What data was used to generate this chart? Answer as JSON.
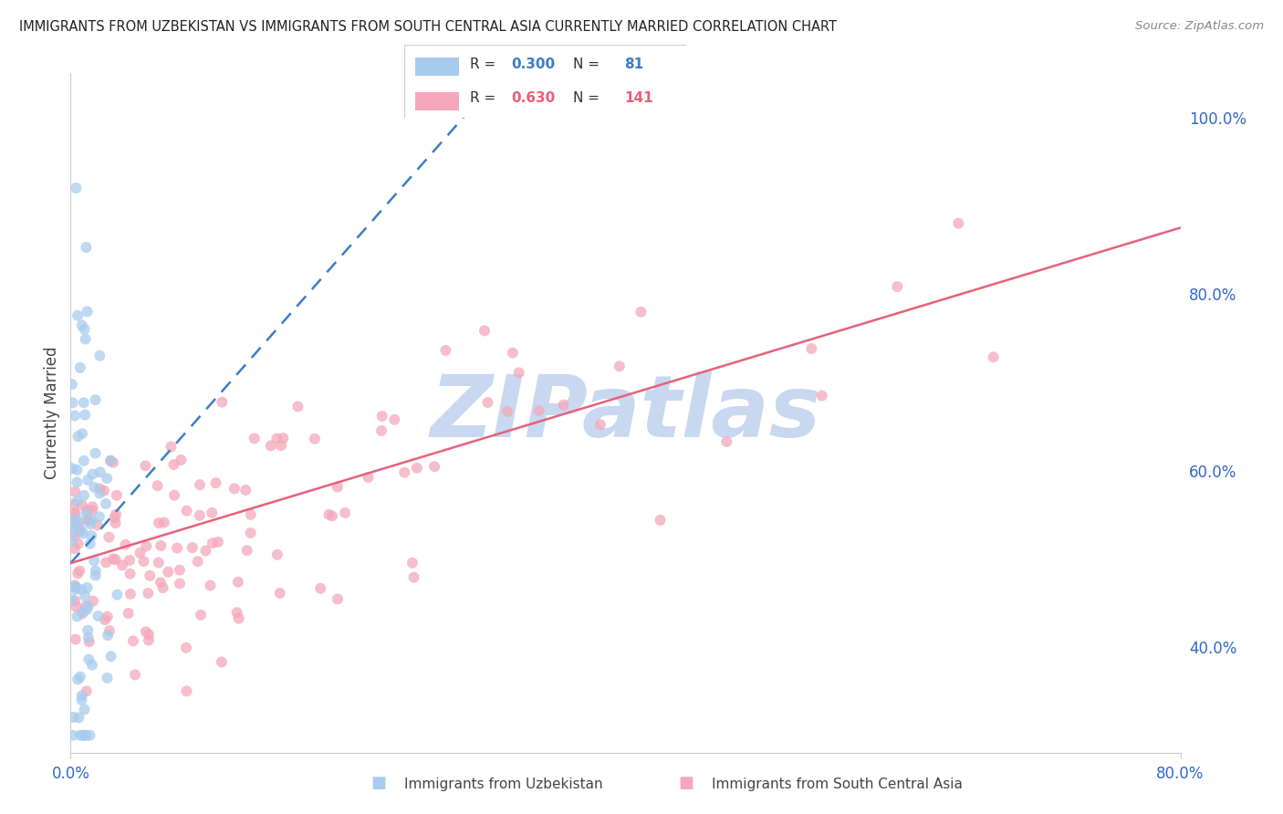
{
  "title": "IMMIGRANTS FROM UZBEKISTAN VS IMMIGRANTS FROM SOUTH CENTRAL ASIA CURRENTLY MARRIED CORRELATION CHART",
  "source": "Source: ZipAtlas.com",
  "ylabel": "Currently Married",
  "right_yticks": [
    40.0,
    60.0,
    80.0,
    100.0
  ],
  "xlim": [
    0.0,
    0.8
  ],
  "ylim": [
    0.28,
    1.05
  ],
  "legend_blue_R": "0.300",
  "legend_blue_N": "81",
  "legend_pink_R": "0.630",
  "legend_pink_N": "141",
  "blue_color": "#A8CCEE",
  "pink_color": "#F4A8BA",
  "blue_line_color": "#3B7DC8",
  "pink_line_color": "#E8607A",
  "watermark": "ZIPatlas",
  "watermark_color": "#C8D8F0",
  "axis_label_color": "#3366CC",
  "title_color": "#222222",
  "grid_color": "#E0E0E0",
  "legend_border_color": "#CCCCCC",
  "spine_color": "#CCCCCC",
  "blue_line_x": [
    0.0,
    0.3
  ],
  "blue_line_y": [
    0.495,
    1.03
  ],
  "pink_line_x": [
    0.0,
    0.8
  ],
  "pink_line_y": [
    0.495,
    0.875
  ]
}
